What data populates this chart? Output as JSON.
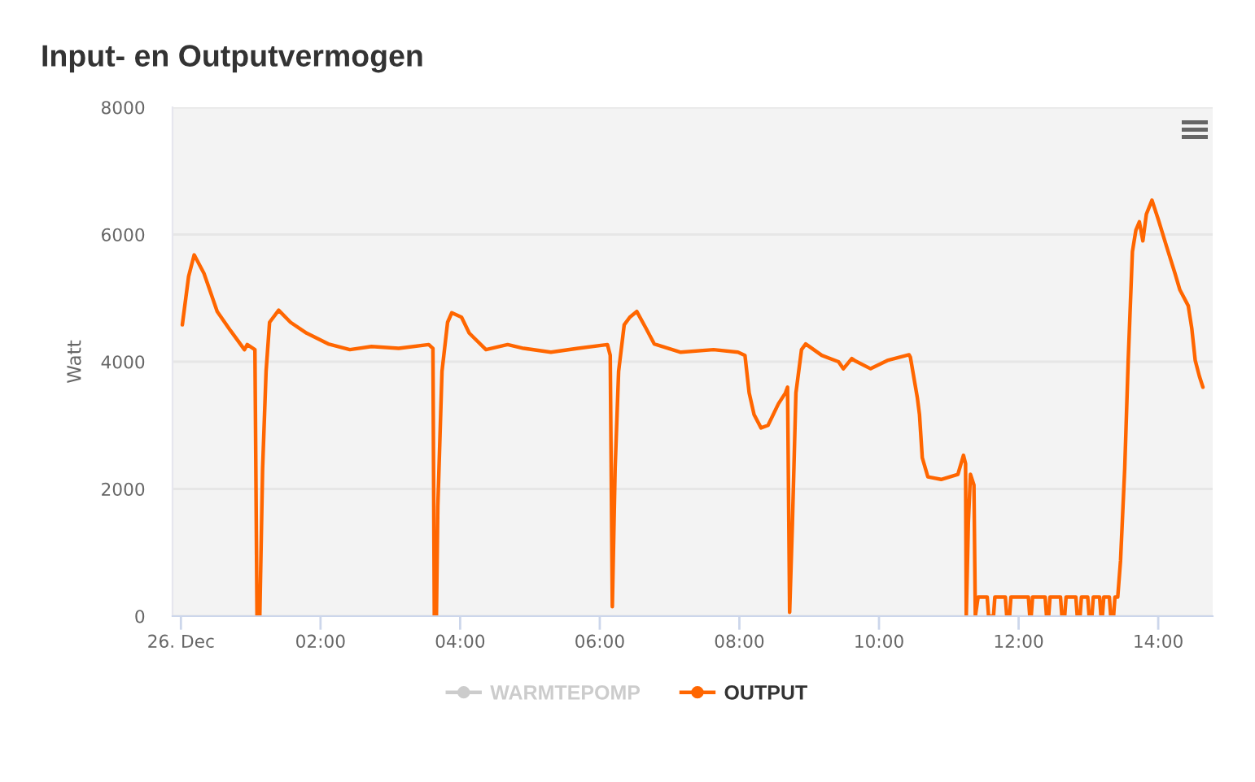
{
  "chart_data": {
    "type": "line",
    "title": "Input- en Outputvermogen",
    "ylabel": "Watt",
    "x": [
      0.02,
      0.11,
      0.19,
      0.33,
      0.52,
      0.71,
      0.91,
      0.95,
      1.06,
      1.09,
      1.13,
      1.17,
      1.22,
      1.27,
      1.4,
      1.57,
      1.8,
      2.11,
      2.42,
      2.73,
      3.12,
      3.55,
      3.61,
      3.63,
      3.66,
      3.68,
      3.74,
      3.82,
      3.88,
      4.02,
      4.13,
      4.37,
      4.68,
      4.91,
      5.3,
      5.69,
      6.11,
      6.15,
      6.18,
      6.22,
      6.27,
      6.35,
      6.43,
      6.53,
      6.66,
      6.78,
      7.16,
      7.63,
      7.98,
      8.08,
      8.14,
      8.21,
      8.31,
      8.41,
      8.56,
      8.66,
      8.69,
      8.72,
      8.76,
      8.81,
      8.89,
      8.95,
      9.18,
      9.42,
      9.49,
      9.61,
      9.65,
      9.88,
      10.12,
      10.43,
      10.45,
      10.55,
      10.58,
      10.62,
      10.7,
      10.89,
      11.13,
      11.21,
      11.24,
      11.25,
      11.28,
      11.31,
      11.36,
      11.38,
      11.42,
      11.55,
      11.57,
      11.64,
      11.66,
      11.81,
      11.83,
      11.87,
      11.89,
      12.14,
      12.16,
      12.18,
      12.2,
      12.38,
      12.4,
      12.43,
      12.45,
      12.6,
      12.62,
      12.66,
      12.68,
      12.82,
      12.84,
      12.88,
      12.9,
      12.99,
      13.01,
      13.05,
      13.07,
      13.16,
      13.18,
      13.2,
      13.22,
      13.3,
      13.32,
      13.36,
      13.38,
      13.42,
      13.46,
      13.52,
      13.57,
      13.63,
      13.68,
      13.73,
      13.78,
      13.83,
      13.91,
      14.0,
      14.12,
      14.24,
      14.31,
      14.43,
      14.48,
      14.53,
      14.59,
      14.64
    ],
    "series": [
      {
        "name": "WARMTEPOMP",
        "color": "#cccccc",
        "values": [
          null,
          null,
          null,
          null,
          null,
          null,
          null,
          null,
          null,
          null,
          null,
          null,
          null,
          null,
          null,
          null,
          null,
          null,
          null,
          null,
          null,
          null,
          null,
          null,
          null,
          null,
          null,
          null,
          null,
          null,
          null,
          null,
          null,
          null,
          null,
          null,
          null,
          null,
          null,
          null,
          null,
          null,
          null,
          null,
          null,
          null,
          null,
          null,
          null,
          null,
          null,
          null,
          null,
          null,
          null,
          null,
          null,
          null,
          null,
          null,
          null,
          null,
          null,
          null,
          null,
          null,
          null,
          null,
          null,
          null,
          null,
          null,
          null,
          null,
          null,
          null,
          null,
          null,
          null,
          null,
          null,
          null,
          null,
          null,
          null,
          null,
          null,
          null,
          null,
          null,
          null,
          null,
          null,
          null,
          null,
          null,
          null,
          null,
          null,
          null,
          null,
          null,
          null,
          null,
          null,
          null,
          null,
          null,
          null,
          null,
          null,
          null,
          null,
          null,
          null,
          null,
          null,
          null,
          null,
          null,
          null,
          null,
          null,
          null,
          null,
          null,
          null,
          null,
          null,
          null,
          null,
          null,
          null,
          null,
          null,
          null,
          null,
          null,
          null,
          null
        ]
      },
      {
        "name": "OUTPUT",
        "color": "#ff6600",
        "values": [
          4580,
          5340,
          5680,
          5390,
          4790,
          4490,
          4190,
          4270,
          4190,
          0,
          0,
          2320,
          3850,
          4620,
          4810,
          4620,
          4450,
          4280,
          4190,
          4240,
          4210,
          4270,
          4210,
          0,
          0,
          1720,
          3850,
          4620,
          4770,
          4700,
          4450,
          4190,
          4270,
          4210,
          4150,
          4210,
          4270,
          4100,
          150,
          2320,
          3850,
          4580,
          4700,
          4790,
          4530,
          4280,
          4150,
          4190,
          4150,
          4100,
          3510,
          3170,
          2960,
          3000,
          3340,
          3510,
          3600,
          60,
          1470,
          3510,
          4190,
          4280,
          4100,
          4000,
          3890,
          4050,
          4020,
          3890,
          4020,
          4110,
          4070,
          3430,
          3170,
          2490,
          2190,
          2150,
          2230,
          2530,
          2400,
          0,
          1470,
          2230,
          2060,
          0,
          300,
          300,
          0,
          0,
          300,
          300,
          0,
          0,
          300,
          300,
          0,
          0,
          300,
          300,
          0,
          0,
          300,
          300,
          0,
          0,
          300,
          300,
          0,
          0,
          300,
          300,
          0,
          0,
          300,
          300,
          0,
          0,
          300,
          300,
          0,
          0,
          300,
          300,
          870,
          2320,
          4020,
          5730,
          6070,
          6200,
          5900,
          6320,
          6540,
          6240,
          5810,
          5390,
          5130,
          4880,
          4530,
          4020,
          3770,
          3600
        ]
      }
    ],
    "xlim": [
      -0.12,
      14.78
    ],
    "xticks": [
      {
        "value": 0,
        "label": "26. Dec"
      },
      {
        "value": 2,
        "label": "02:00"
      },
      {
        "value": 4,
        "label": "04:00"
      },
      {
        "value": 6,
        "label": "06:00"
      },
      {
        "value": 8,
        "label": "08:00"
      },
      {
        "value": 10,
        "label": "10:00"
      },
      {
        "value": 12,
        "label": "12:00"
      },
      {
        "value": 14,
        "label": "14:00"
      }
    ],
    "ylim": [
      0,
      8000
    ],
    "yticks": [
      0,
      2000,
      4000,
      6000,
      8000
    ],
    "grid": "y",
    "legend": "bottom"
  }
}
